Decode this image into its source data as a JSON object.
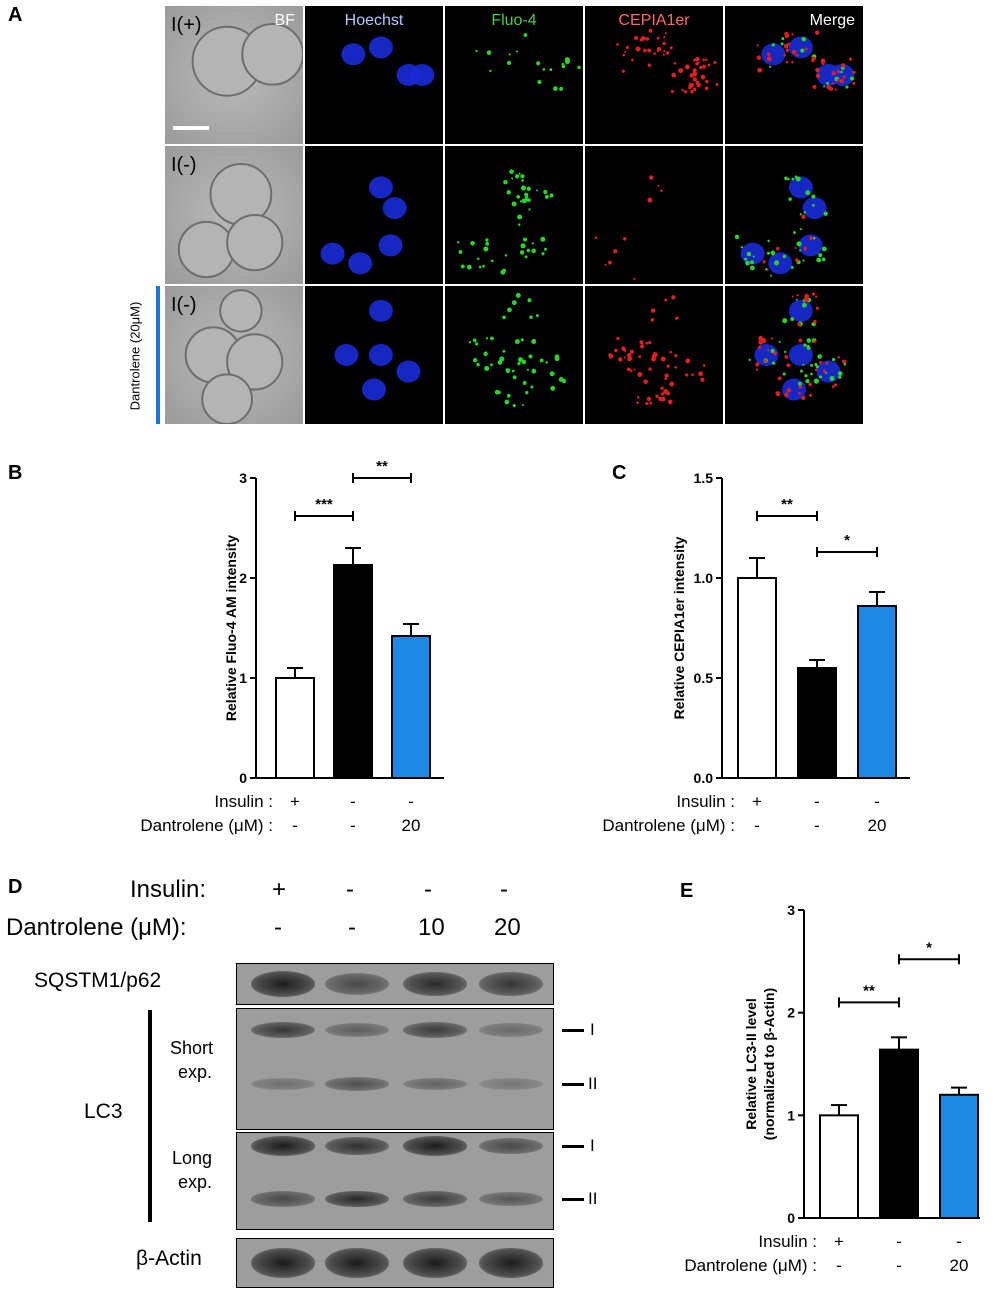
{
  "panels": {
    "a": "A",
    "b": "B",
    "c": "C",
    "d": "D",
    "e": "E"
  },
  "panel_a": {
    "columns": [
      "BF",
      "Hoechst",
      "Fluo-4",
      "CEPIA1er",
      "Merge"
    ],
    "column_colors": [
      "#ffffff",
      "#b3c7ff",
      "#4ccc4c",
      "#ff6a6a",
      "#ffffff"
    ],
    "rows": [
      "I(+)",
      "I(-)",
      "I(-)"
    ],
    "side_label": "Dantrolene (20μM)"
  },
  "chart_data": [
    {
      "type": "bar",
      "panel": "B",
      "ylabel": "Relative Fluo-4 AM intensity",
      "ylim": [
        0,
        3
      ],
      "yticks": [
        "0",
        "1",
        "2",
        "3"
      ],
      "categories": [
        "Insulin +",
        "Insulin -",
        "Insulin - / Dantrolene 20"
      ],
      "values": [
        1.0,
        2.13,
        1.42
      ],
      "errors": [
        0.1,
        0.17,
        0.12
      ],
      "bar_colors": [
        "#ffffff",
        "#000000",
        "#1e88e5"
      ],
      "significance": [
        {
          "from": 0,
          "to": 1,
          "label": "***",
          "y": 2.62
        },
        {
          "from": 1,
          "to": 2,
          "label": "**",
          "y": 3.0
        }
      ],
      "rows": [
        {
          "label": "Insulin :",
          "values": [
            "+",
            "-",
            "-"
          ]
        },
        {
          "label": "Dantrolene (μM) :",
          "values": [
            "-",
            "-",
            "20"
          ]
        }
      ]
    },
    {
      "type": "bar",
      "panel": "C",
      "ylabel": "Relative CEPIA1er intensity",
      "ylim": [
        0,
        1.5
      ],
      "yticks": [
        "0.0",
        "0.5",
        "1.0",
        "1.5"
      ],
      "categories": [
        "Insulin +",
        "Insulin -",
        "Insulin - / Dantrolene 20"
      ],
      "values": [
        1.0,
        0.55,
        0.86
      ],
      "errors": [
        0.1,
        0.04,
        0.07
      ],
      "bar_colors": [
        "#ffffff",
        "#000000",
        "#1e88e5"
      ],
      "significance": [
        {
          "from": 0,
          "to": 1,
          "label": "**",
          "y": 1.31
        },
        {
          "from": 1,
          "to": 2,
          "label": "*",
          "y": 1.13
        }
      ],
      "rows": [
        {
          "label": "Insulin :",
          "values": [
            "+",
            "-",
            "-"
          ]
        },
        {
          "label": "Dantrolene (μM) :",
          "values": [
            "-",
            "-",
            "20"
          ]
        }
      ]
    },
    {
      "type": "bar",
      "panel": "E",
      "ylabel": "Relative LC3-II level (normalized to β-Actin)",
      "ylabel_lines": [
        "Relative LC3-II level",
        "(normalized to β-Actin)"
      ],
      "ylim": [
        0,
        3
      ],
      "yticks": [
        "0",
        "1",
        "2",
        "3"
      ],
      "categories": [
        "Insulin +",
        "Insulin -",
        "Insulin - / Dantrolene 20"
      ],
      "values": [
        1.0,
        1.64,
        1.2
      ],
      "errors": [
        0.1,
        0.12,
        0.07
      ],
      "bar_colors": [
        "#ffffff",
        "#000000",
        "#1e88e5"
      ],
      "significance": [
        {
          "from": 0,
          "to": 1,
          "label": "**",
          "y": 2.1
        },
        {
          "from": 1,
          "to": 2,
          "label": "*",
          "y": 2.52
        }
      ],
      "rows": [
        {
          "label": "Insulin :",
          "values": [
            "+",
            "-",
            "-"
          ]
        },
        {
          "label": "Dantrolene (μM) :",
          "values": [
            "-",
            "-",
            "20"
          ]
        }
      ]
    }
  ],
  "panel_d": {
    "insulin_label": "Insulin:",
    "dantrolene_label": "Dantrolene (μM):",
    "insulin": [
      "+",
      "-",
      "-",
      "-"
    ],
    "dantrolene": [
      "-",
      "-",
      "10",
      "20"
    ],
    "blots": {
      "p62": {
        "label": "SQSTM1/p62",
        "intensity": [
          0.95,
          0.6,
          0.85,
          0.75
        ]
      },
      "lc3_short_I": {
        "intensity": [
          0.75,
          0.45,
          0.7,
          0.35
        ]
      },
      "lc3_short_II": {
        "intensity": [
          0.3,
          0.55,
          0.4,
          0.25
        ]
      },
      "lc3_long_I": {
        "intensity": [
          0.95,
          0.8,
          0.95,
          0.6
        ]
      },
      "lc3_long_II": {
        "intensity": [
          0.6,
          0.85,
          0.7,
          0.5
        ]
      },
      "actin": {
        "label": "β-Actin",
        "intensity": [
          0.95,
          0.95,
          0.95,
          0.95
        ]
      }
    },
    "lc3_label": "LC3",
    "short_label": [
      "Short",
      "exp."
    ],
    "long_label": [
      "Long",
      "exp."
    ],
    "band_I": "I",
    "band_II": "II"
  }
}
